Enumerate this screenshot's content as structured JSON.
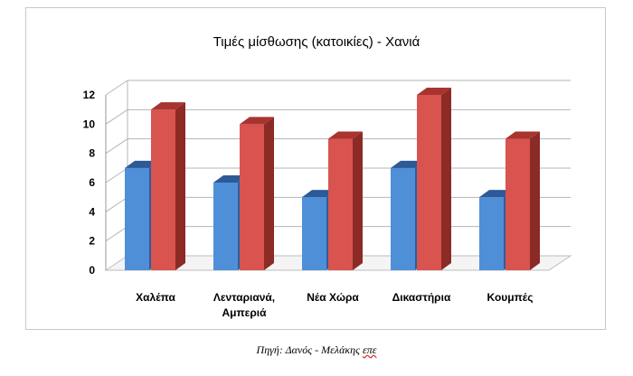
{
  "chart_data": {
    "type": "bar",
    "title": "Τιμές μίσθωσης (κατοικίες) - Χανιά",
    "categories": [
      [
        "Χαλέπα"
      ],
      [
        "Λενταριανά,",
        "Αμπεριά"
      ],
      [
        "Νέα Χώρα"
      ],
      [
        "Δικαστήρια"
      ],
      [
        "Κουμπές"
      ]
    ],
    "series": [
      {
        "values": [
          7,
          6,
          5,
          7,
          5
        ],
        "color": "#4f8fd8",
        "side_color": "#2e5e9c",
        "top_color": "#2c5a96"
      },
      {
        "values": [
          11,
          10,
          9,
          12,
          9
        ],
        "color": "#d9534f",
        "side_color": "#8c2a26",
        "top_color": "#a83430"
      }
    ],
    "ylim": [
      0,
      12
    ],
    "yticks": [
      "0",
      "2",
      "4",
      "6",
      "8",
      "10",
      "12"
    ],
    "grid": true,
    "legend": "none"
  },
  "source": {
    "prefix": "Πηγή: Δανός - Μελάκης ",
    "underlined": "επε"
  }
}
